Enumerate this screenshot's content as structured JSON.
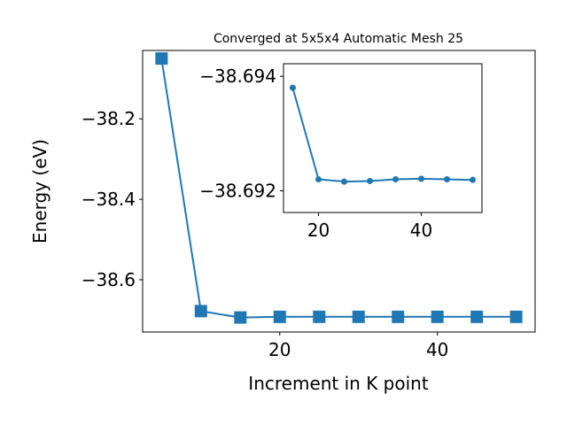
{
  "chart_data": [
    {
      "type": "line",
      "title": "Converged at 5x5x4 Automatic Mesh 25",
      "xlabel": "Increment in K point",
      "ylabel": "Energy (eV)",
      "xlim": [
        2.6,
        52.4
      ],
      "ylim": [
        -38.73,
        -38.03
      ],
      "xticks": [
        20,
        40
      ],
      "yticks": [
        -38.2,
        -38.4,
        -38.6
      ],
      "xtick_labels": [
        "20",
        "40"
      ],
      "ytick_labels": [
        "−38.2",
        "−38.4",
        "−38.6"
      ],
      "grid": false,
      "marker": "square",
      "color": "#1f77b4",
      "series": [
        {
          "x": [
            5,
            10,
            15,
            20,
            25,
            30,
            35,
            40,
            45,
            50
          ],
          "y": [
            -38.05,
            -38.678,
            -38.6938,
            -38.6922,
            -38.6922,
            -38.6922,
            -38.6922,
            -38.6922,
            -38.6922,
            -38.6922
          ]
        }
      ]
    },
    {
      "type": "line",
      "title": "",
      "xlabel": "",
      "ylabel": "",
      "xlim": [
        13.2,
        51.8
      ],
      "ylim": [
        -38.69162,
        -38.69422
      ],
      "xticks": [
        20,
        40
      ],
      "yticks": [
        -38.694,
        -38.692
      ],
      "xtick_labels": [
        "20",
        "40"
      ],
      "ytick_labels": [
        "−38.694",
        "−38.692"
      ],
      "grid": false,
      "marker": "circle",
      "color": "#1f77b4",
      "series": [
        {
          "x": [
            15,
            20,
            25,
            30,
            35,
            40,
            45,
            50
          ],
          "y": [
            -38.6938,
            -38.6922,
            -38.69216,
            -38.69217,
            -38.6922,
            -38.69221,
            -38.6922,
            -38.69219
          ]
        }
      ]
    }
  ]
}
